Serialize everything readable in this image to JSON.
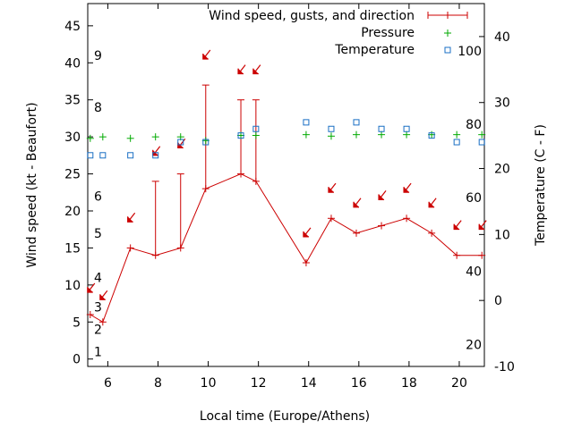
{
  "chart_data": {
    "type": "line",
    "xlabel": "Local time (Europe/Athens)",
    "ylabel": "Wind speed (kt - Beaufort)",
    "y2label": "Temperature (C - F)",
    "xlim": [
      5.2,
      21
    ],
    "ylim": [
      -1,
      48
    ],
    "y2lim": [
      -10,
      45
    ],
    "x_ticks": [
      6,
      8,
      10,
      12,
      14,
      16,
      18,
      20
    ],
    "y_ticks": [
      0,
      5,
      10,
      15,
      20,
      25,
      30,
      35,
      40,
      45
    ],
    "y2_ticks": [
      -10,
      0,
      10,
      20,
      30,
      40
    ],
    "beaufort_labels": [
      {
        "label": "1",
        "y": 1
      },
      {
        "label": "2",
        "y": 4
      },
      {
        "label": "3",
        "y": 7
      },
      {
        "label": "4",
        "y": 11
      },
      {
        "label": "5",
        "y": 17
      },
      {
        "label": "6",
        "y": 22
      },
      {
        "label": "8",
        "y": 34
      },
      {
        "label": "9",
        "y": 41
      }
    ],
    "fahrenheit_labels": [
      {
        "label": "20",
        "y2": -6.7
      },
      {
        "label": "40",
        "y2": 4.4
      },
      {
        "label": "60",
        "y2": 15.6
      },
      {
        "label": "80",
        "y2": 26.7
      },
      {
        "label": "100",
        "y2": 37.8
      }
    ],
    "legend": [
      {
        "label": "Wind speed, gusts, and direction"
      },
      {
        "label": "Pressure"
      },
      {
        "label": "Temperature"
      }
    ],
    "legend_position": "top-right",
    "colors": {
      "wind": "#cc0000",
      "pressure": "#00aa00",
      "temperature": "#1a6fc4"
    },
    "wind": {
      "x": [
        5.3,
        5.8,
        6.9,
        7.9,
        8.9,
        9.9,
        11.3,
        11.9,
        13.9,
        14.9,
        15.9,
        16.9,
        17.9,
        18.9,
        19.9,
        20.9
      ],
      "speed": [
        6,
        5,
        15,
        14,
        15,
        23,
        25,
        24,
        13,
        19,
        17,
        18,
        19,
        17,
        14,
        14
      ],
      "gust": [
        null,
        null,
        null,
        24,
        25,
        37,
        35,
        35,
        null,
        null,
        null,
        null,
        null,
        null,
        null,
        null
      ],
      "direction_marker_y": [
        9.5,
        8.5,
        19,
        28,
        29,
        41,
        39,
        39,
        17,
        23,
        21,
        22,
        23,
        21,
        18,
        18
      ]
    },
    "pressure": {
      "x": [
        5.3,
        5.8,
        6.9,
        7.9,
        8.9,
        9.9,
        11.3,
        11.9,
        13.9,
        14.9,
        15.9,
        16.9,
        17.9,
        18.9,
        19.9,
        20.9
      ],
      "y": [
        29.8,
        30,
        29.8,
        30,
        30,
        29.5,
        30.2,
        30.2,
        30.3,
        30.1,
        30.3,
        30.3,
        30.3,
        30.3,
        30.3,
        30.3
      ]
    },
    "temperature": {
      "x": [
        5.3,
        5.8,
        6.9,
        7.9,
        8.9,
        9.9,
        11.3,
        11.9,
        13.9,
        14.9,
        15.9,
        16.9,
        17.9,
        18.9,
        19.9,
        20.9
      ],
      "y2": [
        22,
        22,
        22,
        22,
        24,
        24,
        25,
        26,
        27,
        26,
        27,
        26,
        26,
        25,
        24,
        24
      ]
    }
  }
}
